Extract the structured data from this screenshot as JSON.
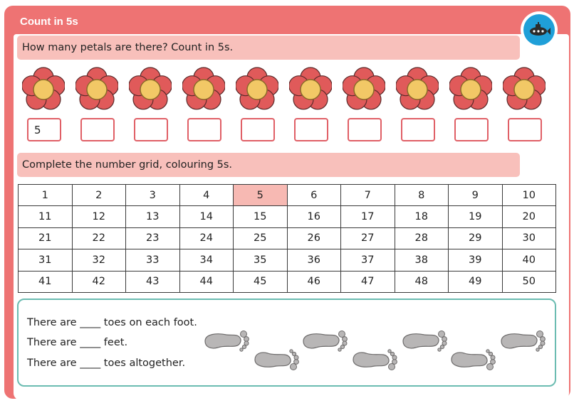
{
  "header": {
    "title": "Count in 5s",
    "logo_icon": "submarine-icon"
  },
  "petals_section": {
    "instruction": "How many petals are there? Count in 5s.",
    "flower_icon": "flower-icon",
    "answers": [
      "5",
      "",
      "",
      "",
      "",
      "",
      "",
      "",
      "",
      ""
    ]
  },
  "grid_section": {
    "instruction": "Complete the number grid, colouring 5s.",
    "highlight_color": "#f7b9b3",
    "rows": [
      [
        "1",
        "2",
        "3",
        "4",
        "5",
        "6",
        "7",
        "8",
        "9",
        "10"
      ],
      [
        "11",
        "12",
        "13",
        "14",
        "15",
        "16",
        "17",
        "18",
        "19",
        "20"
      ],
      [
        "21",
        "22",
        "23",
        "24",
        "25",
        "26",
        "27",
        "28",
        "29",
        "30"
      ],
      [
        "31",
        "32",
        "33",
        "34",
        "35",
        "36",
        "37",
        "38",
        "39",
        "40"
      ],
      [
        "41",
        "42",
        "43",
        "44",
        "45",
        "46",
        "47",
        "48",
        "49",
        "50"
      ]
    ],
    "highlighted": [
      "5"
    ]
  },
  "feet_section": {
    "sentences": [
      "There are ____ toes on each foot.",
      "There are ____ feet.",
      "There are ____ toes altogether."
    ],
    "foot_icon": "foot-icon"
  },
  "colors": {
    "frame": "#ee7373",
    "instruction_bar": "#f8c0bb",
    "panel_border": "#6bbcb1",
    "petal": "#e05a5a",
    "flower_centre": "#f2c866"
  }
}
